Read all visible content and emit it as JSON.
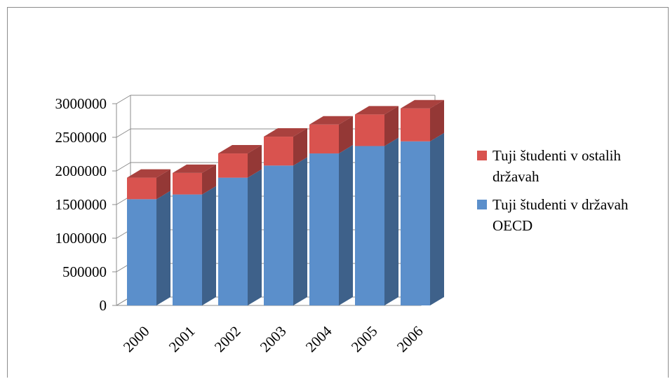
{
  "chart_data": {
    "type": "bar",
    "stacked": true,
    "three_d": true,
    "categories": [
      "2000",
      "2001",
      "2002",
      "2003",
      "2004",
      "2005",
      "2006"
    ],
    "series": [
      {
        "name": "Tuji študenti v državah OECD",
        "color": "#5b8fcb",
        "values": [
          1580000,
          1650000,
          1900000,
          2080000,
          2260000,
          2370000,
          2440000
        ]
      },
      {
        "name": "Tuji študenti v ostalih državah",
        "color": "#d9534f",
        "values": [
          320000,
          320000,
          360000,
          430000,
          430000,
          470000,
          490000
        ]
      }
    ],
    "ylim": [
      0,
      3000000
    ],
    "yticks": [
      "0",
      "500000",
      "1000000",
      "1500000",
      "2000000",
      "2500000",
      "3000000"
    ],
    "grid": true,
    "legend_position": "right",
    "legend": [
      {
        "lines": [
          "Tuji študenti v ostalih",
          "državah"
        ],
        "color": "#d9534f"
      },
      {
        "lines": [
          "Tuji študenti v državah",
          "OECD"
        ],
        "color": "#5b8fcb"
      }
    ]
  }
}
